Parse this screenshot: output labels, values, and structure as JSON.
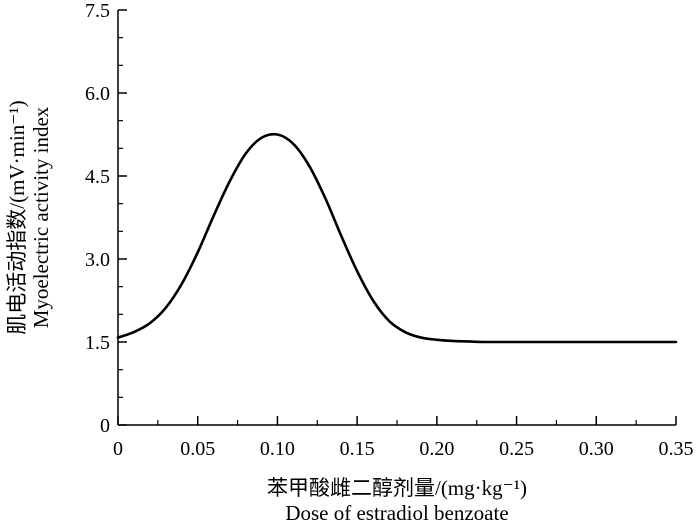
{
  "chart_data": {
    "type": "line",
    "title": "",
    "xlabel_line1": "苯甲酸雌二醇剂量/(mg·kg⁻¹)",
    "xlabel_line2": "Dose of estradiol benzoate",
    "ylabel_line1": "肌电活动指数/(mV·min⁻¹)",
    "ylabel_line2": "Myoelectric activity index",
    "xlim": [
      0,
      0.35
    ],
    "ylim": [
      0,
      7.5
    ],
    "x_ticks": [
      0,
      0.05,
      0.1,
      0.15,
      0.2,
      0.25,
      0.3,
      0.35
    ],
    "x_tick_labels": [
      "0",
      "0.05",
      "0.10",
      "0.15",
      "0.20",
      "0.25",
      "0.30",
      "0.35"
    ],
    "y_ticks": [
      0,
      1.5,
      3.0,
      4.5,
      6.0,
      7.5
    ],
    "y_tick_labels": [
      "0",
      "1.5",
      "3.0",
      "4.5",
      "6.0",
      "7.5"
    ],
    "grid": false,
    "series": [
      {
        "color": "#000000",
        "x": [
          0,
          0.01,
          0.02,
          0.03,
          0.04,
          0.05,
          0.06,
          0.07,
          0.08,
          0.09,
          0.1,
          0.11,
          0.12,
          0.13,
          0.14,
          0.15,
          0.16,
          0.17,
          0.18,
          0.19,
          0.2,
          0.21,
          0.22,
          0.23,
          0.25,
          0.28,
          0.3,
          0.32,
          0.35
        ],
        "y": [
          1.58,
          1.68,
          1.84,
          2.12,
          2.55,
          3.12,
          3.78,
          4.4,
          4.9,
          5.19,
          5.25,
          5.08,
          4.68,
          4.1,
          3.42,
          2.78,
          2.25,
          1.88,
          1.68,
          1.58,
          1.54,
          1.52,
          1.51,
          1.5,
          1.5,
          1.5,
          1.5,
          1.5,
          1.5
        ]
      }
    ]
  }
}
